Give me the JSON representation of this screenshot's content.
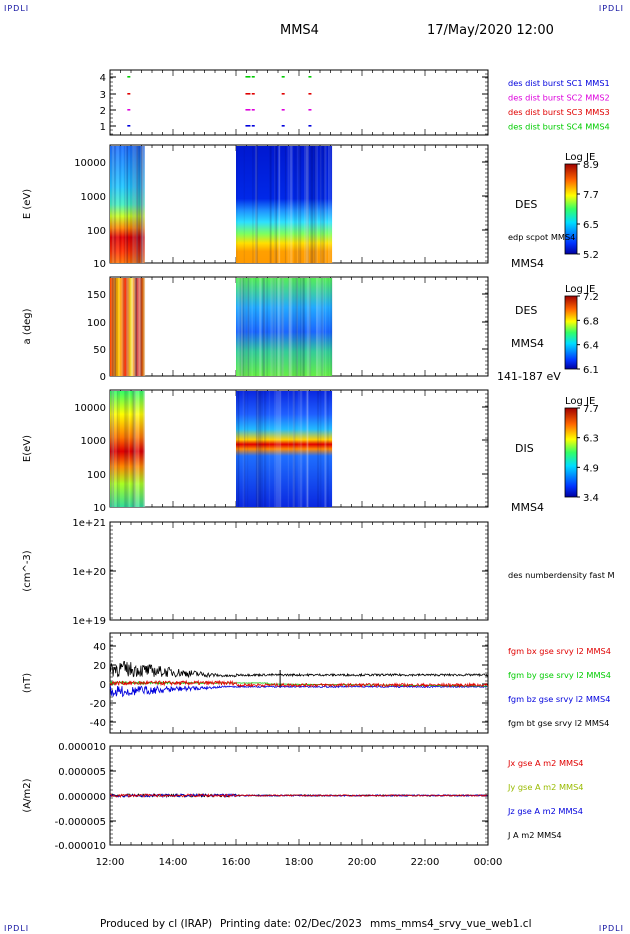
{
  "corners": {
    "tl": "IPDLI",
    "tr": "IPDLI",
    "bl": "IPDLI",
    "br": "IPDLI"
  },
  "header": {
    "spacecraft": "MMS4",
    "date": "17/May/2020 12:00"
  },
  "footer": {
    "produced": "Produced by cl (IRAP)",
    "printing": "Printing date: 02/Dec/2023",
    "filename": "mms_mms4_srvy_vue_web1.cl"
  },
  "time_axis": {
    "ticks": [
      "12:00",
      "14:00",
      "16:00",
      "18:00",
      "20:00",
      "22:00",
      "00:00"
    ],
    "range_hours": [
      12,
      24
    ]
  },
  "colors": {
    "red": "#e00000",
    "green": "#00cc00",
    "blue": "#0000dd",
    "magenta": "#dd00dd",
    "black": "#000000"
  },
  "chart_data": [
    {
      "type": "scatter",
      "id": "burst",
      "ylabel": "",
      "ylim": [
        0.5,
        4.5
      ],
      "yticks": [
        "4",
        "3",
        "2",
        "1"
      ],
      "legend": [
        "des dist burst SC1 MMS1",
        "des dist burst SC2 MMS2",
        "des dist burst SC3 MMS3",
        "des dist burst SC4 MMS4"
      ],
      "legend_colors": [
        "#0000dd",
        "#dd00dd",
        "#e00000",
        "#00cc00"
      ],
      "series": [
        {
          "level": 1,
          "color": "#0000dd",
          "x": [
            12.55,
            16.3,
            16.5,
            17.45,
            18.3
          ]
        },
        {
          "level": 2,
          "color": "#dd00dd",
          "x": [
            12.55,
            16.3,
            16.5,
            17.45,
            18.3
          ]
        },
        {
          "level": 3,
          "color": "#e00000",
          "x": [
            12.55,
            16.3,
            16.5,
            17.45,
            18.3
          ]
        },
        {
          "level": 4,
          "color": "#00cc00",
          "x": [
            12.55,
            16.3,
            16.5,
            17.45,
            18.3
          ]
        }
      ]
    },
    {
      "type": "heatmap",
      "id": "des-energy",
      "ylabel": "E (eV)",
      "yscale": "log",
      "ylim": [
        10,
        30000
      ],
      "yticks": [
        "10000",
        "1000",
        "100",
        "10"
      ],
      "right_labels": [
        "DES",
        "edp scpot MMS4",
        "MMS4"
      ],
      "colorbar": {
        "title": "Log JE",
        "ticks": [
          "8.9",
          "7.7",
          "6.5",
          "5.2"
        ],
        "range": [
          5.2,
          8.9
        ]
      },
      "blocks": [
        {
          "x": [
            12.0,
            13.1
          ]
        },
        {
          "x": [
            16.0,
            19.05
          ]
        }
      ]
    },
    {
      "type": "heatmap",
      "id": "des-pitch",
      "ylabel": "a (deg)",
      "ylim": [
        0,
        180
      ],
      "yticks": [
        "150",
        "100",
        "50",
        "0"
      ],
      "right_labels": [
        "DES",
        "MMS4",
        "141-187 eV"
      ],
      "colorbar": {
        "title": "Log JE",
        "ticks": [
          "7.2",
          "6.8",
          "6.4",
          "6.1"
        ],
        "range": [
          6.1,
          7.2
        ]
      },
      "blocks": [
        {
          "x": [
            12.0,
            13.1
          ]
        },
        {
          "x": [
            16.0,
            19.05
          ]
        }
      ]
    },
    {
      "type": "heatmap",
      "id": "dis-energy",
      "ylabel": "E(eV)",
      "yscale": "log",
      "ylim": [
        10,
        25000
      ],
      "yticks": [
        "10000",
        "1000",
        "100",
        "10"
      ],
      "right_labels": [
        "DIS",
        "MMS4"
      ],
      "colorbar": {
        "title": "Log JE",
        "ticks": [
          "7.7",
          "6.3",
          "4.9",
          "3.4"
        ],
        "range": [
          3.4,
          7.7
        ]
      },
      "blocks": [
        {
          "x": [
            12.0,
            13.1
          ]
        },
        {
          "x": [
            16.0,
            19.05
          ]
        }
      ]
    },
    {
      "type": "line",
      "id": "density",
      "ylabel": "(cm^-3)",
      "yscale": "log",
      "ylim": [
        1e+19,
        1e+21
      ],
      "yticks": [
        "1e+21",
        "1e+20",
        "1e+19"
      ],
      "legend": [
        "des numberdensity fast M"
      ]
    },
    {
      "type": "line",
      "id": "fgm",
      "ylabel": "(nT)",
      "ylim": [
        -50,
        50
      ],
      "yticks": [
        "40",
        "20",
        "0",
        "-20",
        "-40"
      ],
      "legend": [
        "fgm bx gse srvy l2 MMS4",
        "fgm by gse srvy l2 MMS4",
        "fgm bz gse srvy l2 MMS4",
        "fgm bt gse srvy l2 MMS4"
      ],
      "legend_colors": [
        "#e00000",
        "#00cc00",
        "#0000dd",
        "#000000"
      ]
    },
    {
      "type": "line",
      "id": "current",
      "ylabel": "(A/m2)",
      "ylim": [
        -1e-05,
        1e-05
      ],
      "yticks": [
        "0.000010",
        "0.000005",
        "0.000000",
        "-0.000005",
        "-0.000010"
      ],
      "legend": [
        "Jx gse A m2 MMS4",
        "Jy gse A m2 MMS4",
        "Jz gse A m2 MMS4",
        "J A m2 MMS4"
      ],
      "legend_colors": [
        "#e00000",
        "#99bb00",
        "#0000dd",
        "#000000"
      ]
    }
  ]
}
